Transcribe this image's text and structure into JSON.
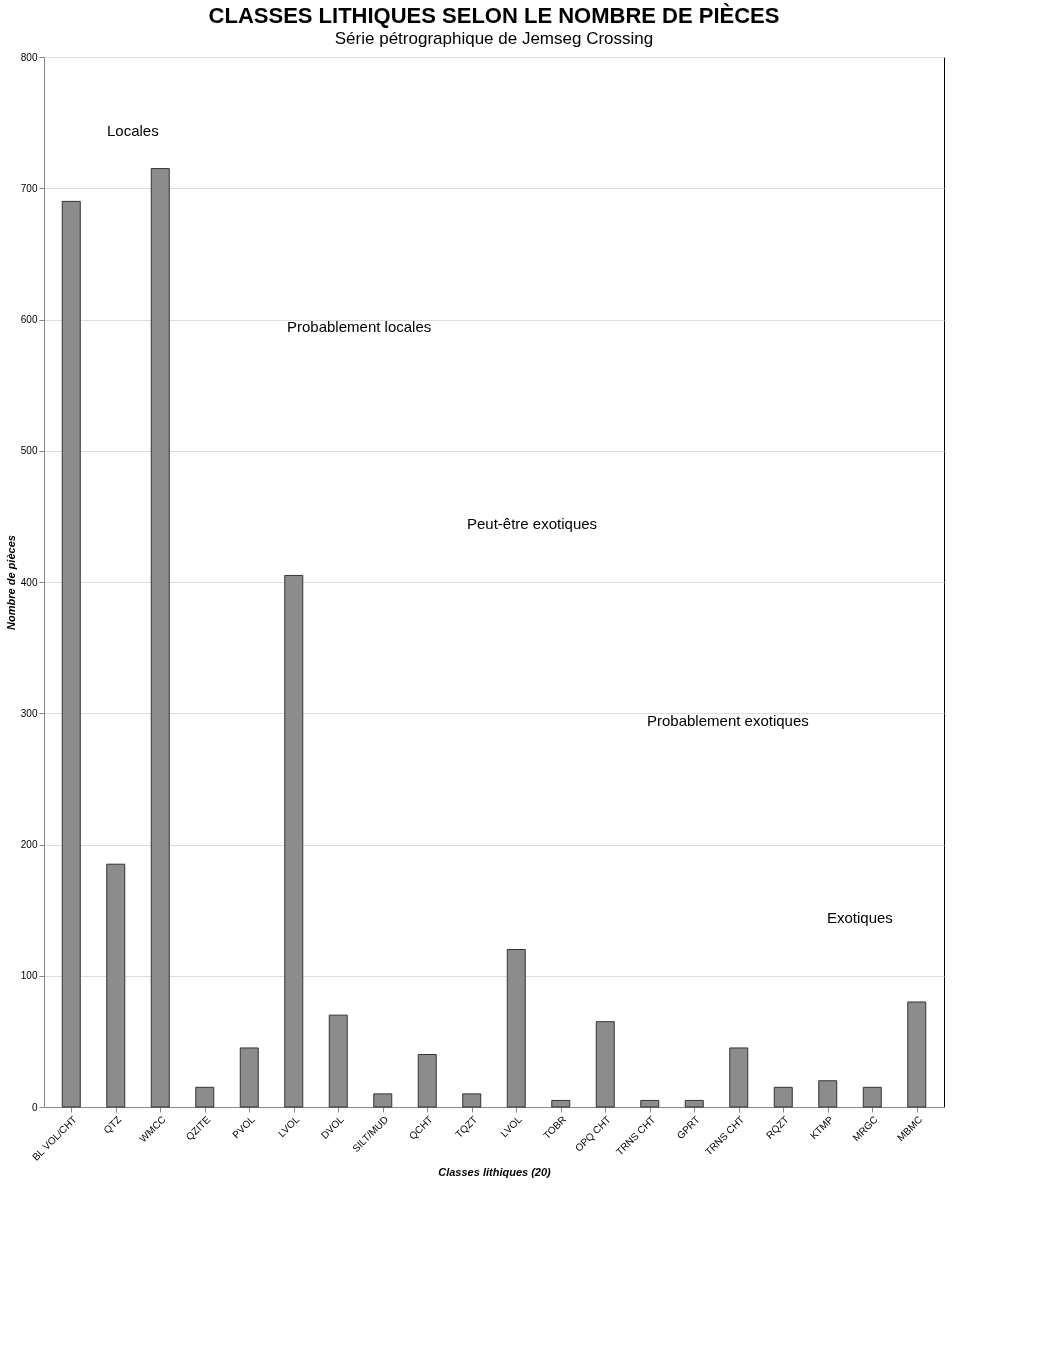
{
  "chart_data": {
    "type": "bar",
    "title": "CLASSES LITHIQUES SELON LE NOMBRE DE PIÈCES",
    "subtitle": "Série pétrographique de Jemseg Crossing",
    "xlabel": "Classes lithiques (20)",
    "ylabel": "Nombre de pièces",
    "categories": [
      "BL VOL/CHT",
      "QTZ",
      "WMCC",
      "QZITE",
      "PVOL",
      "LVOL",
      "DVOL",
      "SILT/MUD",
      "QCHT",
      "TQZT",
      "LVOL",
      "TOBR",
      "OPQ CHT",
      "TRNS CHT",
      "GPRT",
      "TRNS CHT",
      "RQZT",
      "KTMP",
      "MRGC",
      "MBMC"
    ],
    "values": [
      690,
      185,
      715,
      15,
      45,
      405,
      70,
      10,
      40,
      10,
      120,
      5,
      65,
      5,
      5,
      45,
      15,
      20,
      15,
      80
    ],
    "color": "#8c8c8c",
    "ylim": [
      0,
      800
    ],
    "yticks": [
      0,
      100,
      200,
      300,
      400,
      500,
      600,
      700,
      800
    ],
    "grid": "y",
    "annotations": [
      "Locales",
      "Probablement locales",
      "Peut-être exotiques",
      "Probablement exotiques",
      "Exotiques"
    ]
  }
}
